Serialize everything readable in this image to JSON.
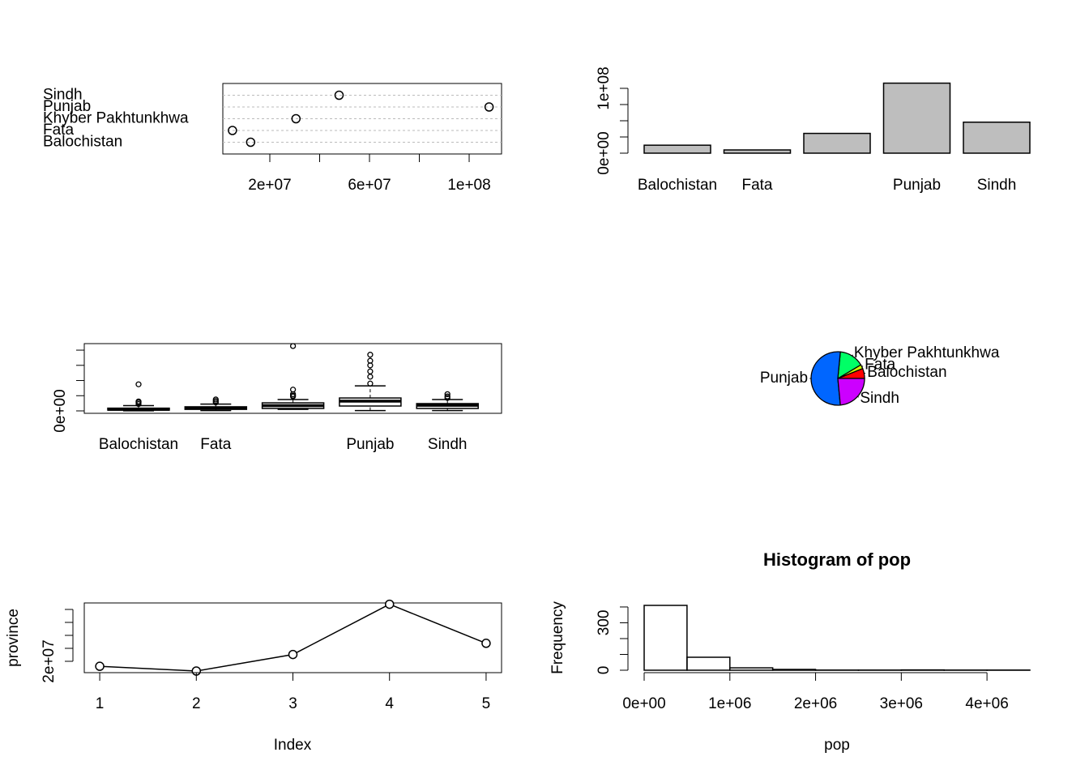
{
  "chart_data": [
    {
      "type": "dot",
      "categories": [
        "Balochistan",
        "Fata",
        "Khyber Pakhtunkhwa",
        "Punjab",
        "Sindh"
      ],
      "values": [
        12300000,
        5000000,
        30500000,
        108000000,
        47800000
      ],
      "xlim": [
        1140000,
        113000000
      ],
      "xticks": [
        {
          "value": 20000000,
          "label": "2e+07"
        },
        {
          "value": 40000000,
          "label": null
        },
        {
          "value": 60000000,
          "label": "6e+07"
        },
        {
          "value": 80000000,
          "label": null
        },
        {
          "value": 100000000,
          "label": "1e+08"
        }
      ]
    },
    {
      "type": "bar",
      "categories": [
        "Balochistan",
        "Fata",
        null,
        "Punjab",
        "Sindh"
      ],
      "values": [
        12300000,
        5000000,
        30500000,
        108000000,
        47800000
      ],
      "color": "#bebebe",
      "ylim": [
        0,
        110000000
      ],
      "yticks": [
        {
          "value": 0,
          "label": "0e+00"
        },
        {
          "value": 25000000,
          "label": null
        },
        {
          "value": 50000000,
          "label": null
        },
        {
          "value": 75000000,
          "label": null
        },
        {
          "value": 100000000,
          "label": "1e+08"
        }
      ]
    },
    {
      "type": "box",
      "categories": [
        "Balochistan",
        "Fata",
        null,
        "Punjab",
        "Sindh"
      ],
      "low": [
        10000,
        20000,
        100000,
        20000,
        20000
      ],
      "q1": [
        50000,
        100000,
        160000,
        320000,
        160000
      ],
      "median": [
        100000,
        180000,
        350000,
        640000,
        370000
      ],
      "q3": [
        180000,
        270000,
        530000,
        850000,
        480000
      ],
      "high": [
        350000,
        450000,
        750000,
        1650000,
        750000
      ],
      "outliers": [
        [
          450000,
          550000,
          620000,
          1750000
        ],
        [
          550000,
          650000,
          750000
        ],
        [
          950000,
          1000000,
          1100000,
          1400000,
          4270000
        ],
        [
          1800000,
          2250000,
          2600000,
          3000000,
          3300000,
          3700000
        ],
        [
          850000,
          950000,
          1100000
        ]
      ],
      "ylim": [
        -160000,
        4430000
      ],
      "yticks": [
        {
          "value": 0,
          "label": "0e+00"
        },
        {
          "value": 1000000,
          "label": null
        },
        {
          "value": 2000000,
          "label": null
        },
        {
          "value": 3000000,
          "label": null
        },
        {
          "value": 4000000,
          "label": null
        }
      ]
    },
    {
      "type": "pie",
      "categories": [
        "Balochistan",
        "Fata",
        "Khyber Pakhtunkhwa",
        "Punjab",
        "Sindh"
      ],
      "values": [
        12300000,
        5000000,
        30500000,
        108000000,
        47800000
      ],
      "colors": [
        "#FF0000",
        "#CCFF00",
        "#00FF66",
        "#0066FF",
        "#CC00FF"
      ]
    },
    {
      "type": "line",
      "x_label": "Index",
      "y_label": "province",
      "x": [
        1,
        2,
        3,
        4,
        5
      ],
      "values": [
        12300000,
        5000000,
        30500000,
        108000000,
        47800000
      ],
      "xlim": [
        0.84,
        5.16
      ],
      "xticks": [
        1,
        2,
        3,
        4,
        5
      ],
      "ylim": [
        2500000,
        110000000
      ],
      "yticks": [
        {
          "value": 20000000,
          "label": "2e+07"
        },
        {
          "value": 40000000,
          "label": null
        },
        {
          "value": 60000000,
          "label": null
        },
        {
          "value": 80000000,
          "label": null
        },
        {
          "value": 100000000,
          "label": null
        }
      ]
    },
    {
      "type": "histogram",
      "title": "Histogram of pop",
      "x_label": "pop",
      "y_label": "Frequency",
      "bins": [
        0,
        500000,
        1000000,
        1500000,
        2000000,
        2500000,
        3000000,
        3500000,
        4000000,
        4500000
      ],
      "values": [
        410,
        82,
        15,
        5,
        1,
        1,
        2,
        1,
        1
      ],
      "ylim": [
        0,
        410
      ],
      "yticks": [
        0,
        {
          "value": 100,
          "label": null
        },
        {
          "value": 200,
          "label": null
        },
        300,
        {
          "value": 400,
          "label": null
        }
      ],
      "xticks": [
        {
          "value": 0,
          "label": "0e+00"
        },
        {
          "value": 1000000,
          "label": "1e+06"
        },
        {
          "value": 2000000,
          "label": "2e+06"
        },
        {
          "value": 3000000,
          "label": "3e+06"
        },
        {
          "value": 4000000,
          "label": "4e+06"
        }
      ]
    }
  ]
}
